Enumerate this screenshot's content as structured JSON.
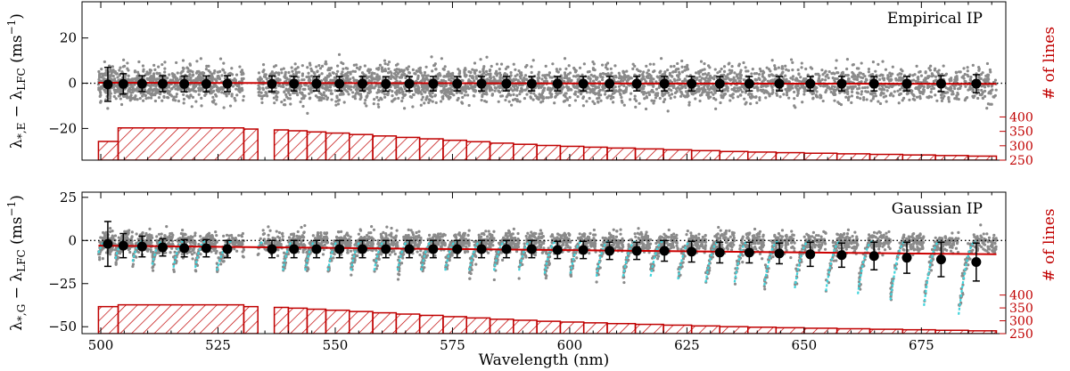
{
  "figure": {
    "xlabel": "Wavelength (nm)",
    "right_ylabel": "# of lines",
    "xlim": [
      496,
      693
    ],
    "x_ticks": [
      500,
      525,
      550,
      575,
      600,
      625,
      650,
      675
    ]
  },
  "chart_data": [
    {
      "type": "scatter",
      "title": "Empirical IP",
      "ylabel_main": "λ",
      "ylabel_sub": "*,E",
      "ylabel_rest": " − λ",
      "ylabel_rest_sub": "LFC",
      "ylabel_unit": " (ms",
      "ylabel_unit_sup": "−1",
      "ylabel_close": ")",
      "ylim": [
        -34,
        36
      ],
      "y_ticks": [
        -20,
        0,
        20
      ],
      "right_ylim": [
        250,
        800
      ],
      "right_ticks": [
        250,
        300,
        350,
        400
      ],
      "gap": [
        530.5,
        533.5
      ],
      "scatter_sigma": 3.5,
      "binned": {
        "x": [
          501.5,
          504.8,
          508.8,
          513.2,
          517.8,
          522.5,
          527.0,
          536.5,
          541.2,
          546.0,
          550.9,
          555.8,
          560.8,
          565.8,
          570.9,
          576.0,
          581.2,
          586.5,
          591.9,
          597.4,
          602.9,
          608.5,
          614.3,
          620.2,
          626.0,
          632.0,
          638.3,
          644.7,
          651.3,
          658.0,
          664.9,
          671.9,
          679.2,
          686.7
        ],
        "y": [
          -0.5,
          -0.3,
          -0.2,
          -0.2,
          -0.3,
          -0.3,
          -0.2,
          -0.3,
          -0.2,
          -0.2,
          -0.2,
          -0.2,
          -0.3,
          -0.2,
          -0.2,
          -0.2,
          -0.2,
          -0.2,
          -0.2,
          -0.2,
          -0.2,
          -0.2,
          -0.2,
          -0.2,
          -0.2,
          -0.2,
          -0.2,
          -0.2,
          -0.2,
          -0.2,
          -0.2,
          -0.2,
          -0.2,
          -0.2
        ],
        "err": [
          7.5,
          4.5,
          3.5,
          3.5,
          3.5,
          3.5,
          3.5,
          3.5,
          3.2,
          3.2,
          3.2,
          3.2,
          3.2,
          3.2,
          3.2,
          3.2,
          3.2,
          3.2,
          3.2,
          3.2,
          3.2,
          3.2,
          3.2,
          3.2,
          3.2,
          3.2,
          3.2,
          3.2,
          3.2,
          3.2,
          3.2,
          3.2,
          3.5,
          4.0
        ]
      },
      "fit": {
        "x": [
          499.5,
          691
        ],
        "y": [
          0.2,
          -0.3
        ]
      },
      "reference_line": 0,
      "histogram": {
        "edges": [
          499.5,
          503.7,
          530.5,
          533.5,
          537,
          540,
          544,
          548,
          553,
          558,
          563,
          568,
          573,
          578,
          583,
          588,
          593,
          598,
          603,
          608,
          614,
          620,
          626,
          632,
          638,
          644,
          650,
          657,
          664,
          671,
          678,
          685,
          691
        ],
        "counts": [
          315,
          362,
          358,
          0,
          355,
          352,
          348,
          344,
          339,
          334,
          329,
          324,
          319,
          314,
          309,
          305,
          301,
          298,
          295,
          292,
          289,
          286,
          283,
          280,
          278,
          276,
          274,
          272,
          270,
          268,
          266,
          264
        ]
      }
    },
    {
      "type": "scatter",
      "title": "Gaussian IP",
      "ylabel_main": "λ",
      "ylabel_sub": "*,G",
      "ylabel_rest": " − λ",
      "ylabel_rest_sub": "LFC",
      "ylabel_unit": " (ms",
      "ylabel_unit_sup": "−1",
      "ylabel_close": ")",
      "ylim": [
        -54,
        28
      ],
      "y_ticks": [
        -50,
        -25,
        0,
        25
      ],
      "right_ylim": [
        250,
        800
      ],
      "right_ticks": [
        250,
        300,
        350,
        400
      ],
      "gap": [
        530.5,
        533.5
      ],
      "scatter_sigma": 3.5,
      "binned": {
        "x": [
          501.5,
          504.8,
          508.8,
          513.2,
          517.8,
          522.5,
          527.0,
          536.5,
          541.2,
          546.0,
          550.9,
          555.8,
          560.8,
          565.8,
          570.9,
          576.0,
          581.2,
          586.5,
          591.9,
          597.4,
          602.9,
          608.5,
          614.3,
          620.2,
          626.0,
          632.0,
          638.3,
          644.7,
          651.3,
          658.0,
          664.9,
          671.9,
          679.2,
          686.7
        ],
        "y": [
          -2,
          -3,
          -3.5,
          -4,
          -4.5,
          -4.5,
          -5,
          -5,
          -5,
          -5,
          -5,
          -5,
          -5,
          -5,
          -5,
          -5,
          -5,
          -5,
          -5,
          -5.5,
          -5.5,
          -6,
          -6,
          -6,
          -6.5,
          -7,
          -7,
          -7.5,
          -8,
          -8.5,
          -9,
          -10,
          -11,
          -12.5
        ],
        "err": [
          13,
          7,
          6,
          5,
          5,
          5,
          5,
          5,
          5,
          5,
          5,
          5,
          5,
          5,
          5,
          5,
          5,
          5,
          5,
          5,
          5,
          5,
          5,
          6,
          6,
          6,
          6,
          6,
          7,
          7,
          8,
          9,
          10,
          11
        ]
      },
      "fit": {
        "x": [
          499.5,
          691
        ],
        "y": [
          -3,
          -8
        ]
      },
      "reference_line": 0,
      "histogram": {
        "edges": [
          499.5,
          503.7,
          530.5,
          533.5,
          537,
          540,
          544,
          548,
          553,
          558,
          563,
          568,
          573,
          578,
          583,
          588,
          593,
          598,
          603,
          608,
          614,
          620,
          626,
          632,
          638,
          644,
          650,
          657,
          664,
          671,
          678,
          685,
          691
        ],
        "counts": [
          355,
          362,
          355,
          0,
          352,
          349,
          345,
          341,
          336,
          331,
          326,
          321,
          316,
          311,
          306,
          302,
          298,
          295,
          292,
          289,
          286,
          283,
          280,
          277,
          275,
          273,
          271,
          269,
          267,
          265,
          263,
          261
        ]
      }
    }
  ]
}
